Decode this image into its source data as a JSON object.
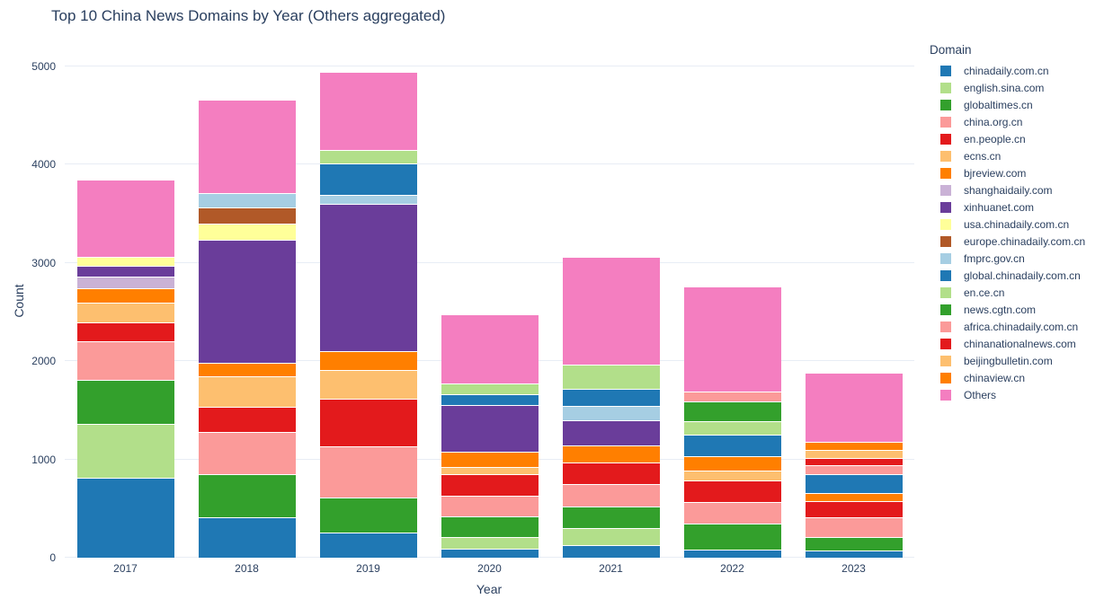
{
  "title": "Top 10 China News Domains by Year (Others aggregated)",
  "colors": {
    "text": "#2a3f5f",
    "grid": "#e8edf5",
    "background": "#ffffff",
    "segment_border": "#ffffff"
  },
  "chart_data": {
    "type": "bar",
    "stacked": true,
    "title": "Top 10 China News Domains by Year (Others aggregated)",
    "xlabel": "Year",
    "ylabel": "Count",
    "categories": [
      "2017",
      "2018",
      "2019",
      "2020",
      "2021",
      "2022",
      "2023"
    ],
    "yticks": [
      0,
      1000,
      2000,
      3000,
      4000,
      5000
    ],
    "ylim": [
      0,
      5220
    ],
    "grid": true,
    "legend": {
      "title": "Domain",
      "position": "right"
    },
    "series": [
      {
        "name": "chinadaily.com.cn",
        "color": "#1f78b4",
        "values": [
          810,
          410,
          255,
          90,
          130,
          85,
          75
        ]
      },
      {
        "name": "english.sina.com",
        "color": "#b2df8a",
        "values": [
          550,
          0,
          0,
          120,
          175,
          0,
          0
        ]
      },
      {
        "name": "globaltimes.cn",
        "color": "#33a02c",
        "values": [
          450,
          440,
          355,
          215,
          215,
          265,
          135
        ]
      },
      {
        "name": "china.org.cn",
        "color": "#fb9a99",
        "values": [
          395,
          430,
          525,
          205,
          230,
          220,
          205
        ]
      },
      {
        "name": "en.people.cn",
        "color": "#e31a1c",
        "values": [
          190,
          255,
          485,
          220,
          215,
          220,
          160
        ]
      },
      {
        "name": "ecns.cn",
        "color": "#fdbf6f",
        "values": [
          205,
          310,
          295,
          75,
          0,
          100,
          0
        ]
      },
      {
        "name": "bjreview.com",
        "color": "#ff7f00",
        "values": [
          140,
          140,
          185,
          150,
          175,
          145,
          85
        ]
      },
      {
        "name": "shanghaidaily.com",
        "color": "#cab2d6",
        "values": [
          120,
          0,
          0,
          0,
          0,
          0,
          0
        ]
      },
      {
        "name": "xinhuanet.com",
        "color": "#6a3d9a",
        "values": [
          115,
          1250,
          1500,
          480,
          255,
          0,
          0
        ]
      },
      {
        "name": "usa.chinadaily.com.cn",
        "color": "#ffff99",
        "values": [
          85,
          170,
          0,
          0,
          0,
          0,
          0
        ]
      },
      {
        "name": "europe.chinadaily.com.cn",
        "color": "#b15928",
        "values": [
          0,
          165,
          0,
          0,
          0,
          0,
          0
        ]
      },
      {
        "name": "fmprc.gov.cn",
        "color": "#a6cee3",
        "values": [
          0,
          140,
          90,
          0,
          150,
          0,
          0
        ]
      },
      {
        "name": "global.chinadaily.com.cn",
        "color": "#1f78b4",
        "values": [
          0,
          0,
          320,
          105,
          170,
          220,
          190
        ]
      },
      {
        "name": "en.ce.cn",
        "color": "#b2df8a",
        "values": [
          0,
          0,
          145,
          110,
          250,
          135,
          0
        ]
      },
      {
        "name": "news.cgtn.com",
        "color": "#33a02c",
        "values": [
          0,
          0,
          0,
          0,
          0,
          200,
          0
        ]
      },
      {
        "name": "africa.chinadaily.com.cn",
        "color": "#fb9a99",
        "values": [
          0,
          0,
          0,
          0,
          0,
          105,
          90
        ]
      },
      {
        "name": "chinanationalnews.com",
        "color": "#e31a1c",
        "values": [
          0,
          0,
          0,
          0,
          0,
          0,
          75
        ]
      },
      {
        "name": "beijingbulletin.com",
        "color": "#fdbf6f",
        "values": [
          0,
          0,
          0,
          0,
          0,
          0,
          80
        ]
      },
      {
        "name": "chinaview.cn",
        "color": "#ff7f00",
        "values": [
          0,
          0,
          0,
          0,
          0,
          0,
          80
        ]
      },
      {
        "name": "Others",
        "color": "#f47ec0",
        "values": [
          790,
          950,
          790,
          710,
          1100,
          1065,
          705
        ]
      }
    ],
    "totals": [
      3850,
      4660,
      4945,
      2480,
      3065,
      2760,
      1880
    ]
  }
}
